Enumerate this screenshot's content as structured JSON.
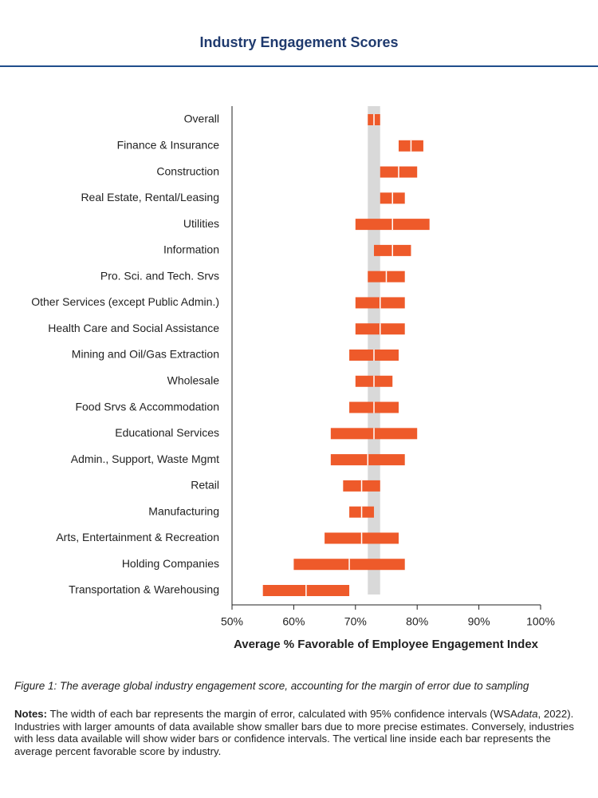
{
  "header": {
    "title": "Industry Engagement Scores"
  },
  "chart_data": {
    "type": "range-bar",
    "categories": [
      "Overall",
      "Finance & Insurance",
      "Construction",
      "Real Estate, Rental/Leasing",
      "Utilities",
      "Information",
      "Pro. Sci. and Tech. Srvs",
      "Other Services (except Public Admin.)",
      "Health Care and Social Assistance",
      "Mining and Oil/Gas Extraction",
      "Wholesale",
      "Food Srvs & Accommodation",
      "Educational Services",
      "Admin., Support, Waste Mgmt",
      "Retail",
      "Manufacturing",
      "Arts, Entertainment & Recreation",
      "Holding Companies",
      "Transportation & Warehousing"
    ],
    "low": [
      72,
      77,
      74,
      74,
      70,
      73,
      72,
      70,
      70,
      69,
      70,
      69,
      66,
      66,
      68,
      69,
      65,
      60,
      55
    ],
    "mean": [
      73,
      79,
      77,
      76,
      76,
      76,
      75,
      74,
      74,
      73,
      73,
      73,
      73,
      72,
      71,
      71,
      71,
      69,
      62
    ],
    "high": [
      74,
      81,
      80,
      78,
      82,
      79,
      78,
      78,
      78,
      77,
      76,
      77,
      80,
      78,
      74,
      73,
      77,
      78,
      69
    ],
    "color": "#ee5a2a",
    "reference_band": [
      72,
      74
    ],
    "reference_color": "#d9d9d9",
    "xlim": [
      50,
      100
    ],
    "xticks": [
      {
        "value": 50,
        "label": "50%"
      },
      {
        "value": 60,
        "label": "60%"
      },
      {
        "value": 70,
        "label": "70%"
      },
      {
        "value": 80,
        "label": "80%"
      },
      {
        "value": 90,
        "label": "90%"
      },
      {
        "value": 100,
        "label": "100%"
      }
    ],
    "x_label": "Average % Favorable of Employee Engagement Index"
  },
  "caption": "Figure 1: The average global industry engagement score, accounting for the margin of error due to sampling",
  "notes": {
    "label": "Notes:",
    "text_1": " The width of each bar represents the margin of error, calculated with 95% confidence intervals (WSA",
    "italic": "data",
    "text_2": ", 2022). Industries with larger amounts of data available show smaller bars due to more precise estimates. Conversely, industries with less data available will show wider bars or confidence intervals. The vertical line inside each bar represents the average percent favorable score by industry."
  }
}
